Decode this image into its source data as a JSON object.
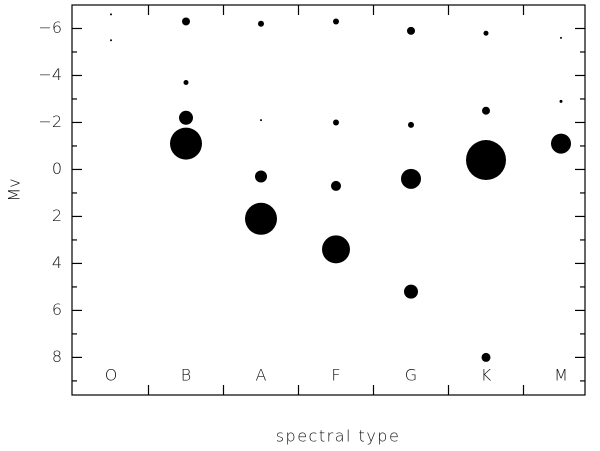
{
  "chart_data": {
    "type": "bubble",
    "x_label": "spectral type",
    "y_label": "Mv",
    "categories": [
      "O",
      "B",
      "A",
      "F",
      "G",
      "K",
      "M"
    ],
    "ylim": [
      9.6,
      -7
    ],
    "yticks": [
      {
        "value": -6,
        "label": "−6"
      },
      {
        "value": -4,
        "label": "−4"
      },
      {
        "value": -2,
        "label": "−2"
      },
      0,
      2,
      4,
      6,
      8
    ],
    "color": "#000000",
    "series": [
      {
        "x": [
          "O",
          "O",
          "B",
          "B",
          "B",
          "B",
          "A",
          "A",
          "A",
          "A",
          "F",
          "F",
          "F",
          "F",
          "G",
          "G",
          "G",
          "G",
          "K",
          "K",
          "K",
          "K",
          "M",
          "M",
          "M"
        ],
        "values": [
          -6.6,
          -5.5,
          -6.3,
          -3.7,
          -2.2,
          -1.1,
          -6.2,
          -2.1,
          0.3,
          2.1,
          -6.3,
          -2.0,
          0.7,
          3.4,
          -5.9,
          -1.9,
          0.4,
          5.2,
          -5.8,
          -2.5,
          -0.4,
          8.0,
          -5.6,
          -2.9,
          -1.1
        ],
        "sizes": [
          1,
          1,
          4,
          2.5,
          7,
          16,
          3,
          1,
          6,
          16,
          3,
          3,
          5,
          14,
          4,
          3,
          10,
          7,
          2.5,
          4,
          20,
          4.5,
          1,
          1.5,
          10
        ]
      }
    ]
  }
}
